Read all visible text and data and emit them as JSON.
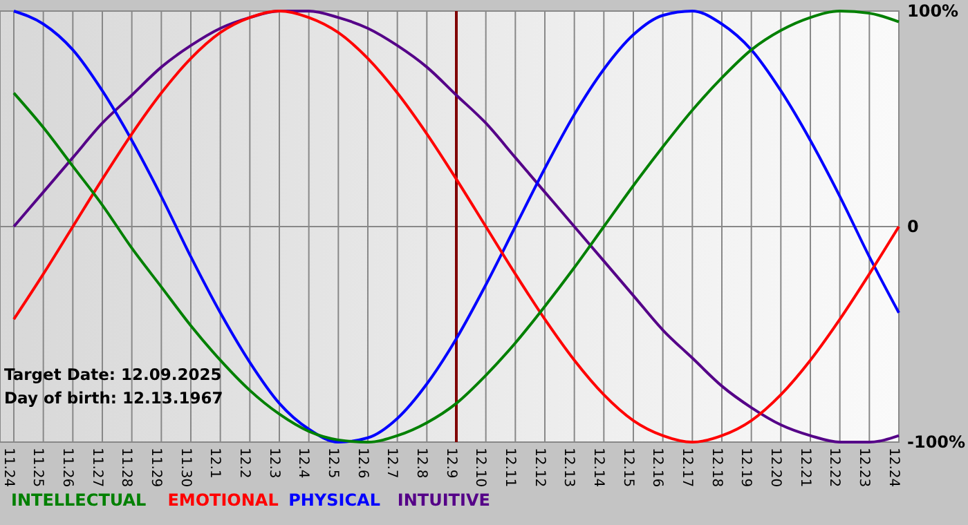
{
  "chart_data": {
    "type": "line",
    "categories": [
      "11.24",
      "11.25",
      "11.26",
      "11.27",
      "11.28",
      "11.29",
      "11.30",
      "12.1",
      "12.2",
      "12.3",
      "12.4",
      "12.5",
      "12.6",
      "12.7",
      "12.8",
      "12.9",
      "12.10",
      "12.11",
      "12.12",
      "12.13",
      "12.14",
      "12.15",
      "12.16",
      "12.17",
      "12.18",
      "12.19",
      "12.20",
      "12.21",
      "12.22",
      "12.23",
      "12.24"
    ],
    "series": [
      {
        "name": "INTELLECTUAL",
        "color": "#008000",
        "values": [
          62,
          46,
          28,
          10,
          -10,
          -28,
          -46,
          -62,
          -76,
          -87,
          -95,
          -99,
          -100,
          -97,
          -91,
          -82,
          -69,
          -54,
          -37,
          -19,
          0,
          19,
          37,
          54,
          69,
          82,
          91,
          97,
          100,
          99,
          95
        ]
      },
      {
        "name": "EMOTIONAL",
        "color": "#ff0000",
        "values": [
          -43,
          -22,
          0,
          22,
          43,
          62,
          78,
          90,
          97,
          100,
          97,
          90,
          78,
          62,
          43,
          22,
          0,
          -22,
          -43,
          -62,
          -78,
          -90,
          -97,
          -100,
          -97,
          -90,
          -78,
          -62,
          -43,
          -22,
          0
        ]
      },
      {
        "name": "PHYSICAL",
        "color": "#0000ff",
        "values": [
          100,
          94,
          82,
          63,
          40,
          14,
          -14,
          -40,
          -63,
          -82,
          -94,
          -100,
          -98,
          -89,
          -73,
          -52,
          -27,
          0,
          27,
          52,
          73,
          89,
          98,
          100,
          94,
          82,
          63,
          40,
          14,
          -14,
          -40
        ]
      },
      {
        "name": "INTUITIVE",
        "color": "#550088",
        "values": [
          0,
          16,
          32,
          48,
          61,
          74,
          84,
          92,
          97,
          100,
          100,
          97,
          92,
          84,
          74,
          61,
          48,
          32,
          16,
          0,
          -16,
          -32,
          -48,
          -61,
          -74,
          -84,
          -92,
          -97,
          -100,
          -100,
          -97
        ]
      }
    ],
    "ylim": [
      -100,
      100
    ],
    "yticks": [
      {
        "value": 100,
        "label": "100%"
      },
      0,
      {
        "value": -100,
        "label": "-100%"
      }
    ],
    "grid": true,
    "legend": "bottom",
    "marker": "none",
    "line_style": "solid",
    "ref_lines": [
      {
        "axis": "x",
        "value": "12.9",
        "color": "#800000"
      }
    ],
    "annotations": [
      "Target Date: 12.09.2025",
      "Day of birth: 12.13.1967"
    ]
  }
}
